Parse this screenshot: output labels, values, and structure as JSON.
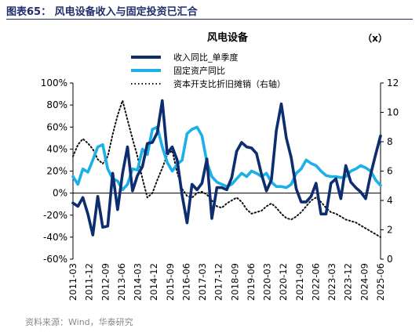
{
  "figure": {
    "title": "图表65：  风电设备收入与固定投资已汇合",
    "source": "资料来源：Wind，华泰研究"
  },
  "chart_data": {
    "type": "line",
    "title": "风电设备",
    "right_axis_unit": "（x）",
    "ylim_left": [
      -60,
      100
    ],
    "ylim_right": [
      0,
      12
    ],
    "yticks_left": [
      "-60%",
      "-40%",
      "-20%",
      "0%",
      "20%",
      "40%",
      "60%",
      "80%",
      "100%"
    ],
    "yticks_left_values": [
      -60,
      -40,
      -20,
      0,
      20,
      40,
      60,
      80,
      100
    ],
    "yticks_right": [
      "0",
      "2",
      "4",
      "6",
      "8",
      "10",
      "12"
    ],
    "yticks_right_values": [
      0,
      2,
      4,
      6,
      8,
      10,
      12
    ],
    "x_labels": [
      "2011-03",
      "2011-12",
      "2012-09",
      "2013-06",
      "2014-03",
      "2014-12",
      "2015-09",
      "2016-06",
      "2017-03",
      "2017-12",
      "2018-09",
      "2019-06",
      "2020-03",
      "2020-12",
      "2021-09",
      "2022-06",
      "2023-03",
      "2023-12",
      "2024-09",
      "2025-06"
    ],
    "legend_position": "top-center",
    "grid": false,
    "colors": {
      "revenue": "#0d2d6e",
      "fixed_investment": "#1bb0e8",
      "capex_ratio": "#111111"
    },
    "series": [
      {
        "name": "收入同比_单季度",
        "axis": "left",
        "style": "solid-thick",
        "values": [
          -9,
          -12,
          -4,
          -19,
          -38,
          -3,
          -31,
          -30,
          18,
          -15,
          18,
          42,
          2,
          16,
          24,
          45,
          46,
          55,
          84,
          36,
          42,
          30,
          -2,
          -27,
          8,
          3,
          9,
          31,
          -23,
          5,
          5,
          3,
          14,
          38,
          46,
          42,
          41,
          36,
          17,
          2,
          12,
          57,
          81,
          50,
          32,
          4,
          -8,
          -8,
          -3,
          9,
          -19,
          -19,
          9,
          13,
          -5,
          25,
          10,
          5,
          1,
          -5,
          17,
          35,
          52
        ]
      },
      {
        "name": "固定资产同比",
        "axis": "left",
        "style": "solid-thick",
        "values": [
          15,
          8,
          22,
          19,
          30,
          42,
          44,
          22,
          13,
          11,
          3,
          8,
          22,
          21,
          40,
          35,
          58,
          60,
          42,
          28,
          20,
          26,
          30,
          54,
          58,
          60,
          52,
          28,
          15,
          10,
          8,
          6,
          8,
          13,
          18,
          15,
          20,
          18,
          15,
          18,
          10,
          6,
          6,
          5,
          8,
          18,
          22,
          30,
          27,
          25,
          20,
          16,
          15,
          15,
          14,
          15,
          20,
          22,
          25,
          23,
          20,
          12,
          7
        ]
      },
      {
        "name": "资本开支比折旧摊销（右轴）",
        "axis": "right",
        "style": "dotted",
        "values": [
          7,
          7.8,
          8.2,
          7.9,
          7.5,
          6.8,
          6.5,
          7,
          8.5,
          9.8,
          10.8,
          9.5,
          8.2,
          7,
          5.5,
          4.2,
          4.5,
          5.4,
          6.2,
          7.1,
          7.4,
          5.9,
          4.8,
          4.3,
          4.2,
          4.5,
          4.6,
          4.4,
          4,
          3.6,
          3.5,
          3.8,
          4,
          4.2,
          3.9,
          3.4,
          3.1,
          3.2,
          3.3,
          3.6,
          3.8,
          3.5,
          3.1,
          2.8,
          2.7,
          2.9,
          3.2,
          3.6,
          4,
          4.2,
          3.9,
          3.5,
          3.2,
          3.1,
          2.9,
          2.7,
          2.6,
          2.5,
          2.3,
          2.1,
          1.9,
          1.7,
          1.5
        ]
      }
    ]
  }
}
